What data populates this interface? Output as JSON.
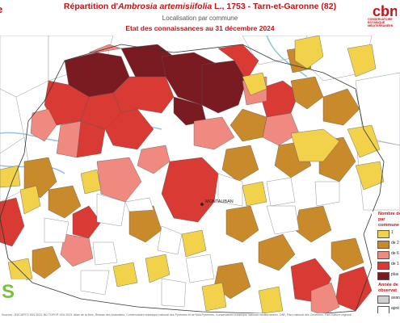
{
  "header": {
    "title_prefix": "Répartition d'",
    "title_species": "Ambrosia artemisiifolia",
    "title_suffix": " L., 1753 - Tarn-et-Garonne (82)",
    "subtitle": "Localisation par commune",
    "date_line": "Etat des connaissances au 31 décembre 2024",
    "left_logo_text": "e",
    "cbn_logo_text": "cbn",
    "cbn_caption": "CONSERVATOIRE BOTANIQUE MÉDITERRANÉEN"
  },
  "map": {
    "city_label": "MONTAUBAN",
    "colors": {
      "c1": "#f1d24a",
      "c2": "#c98a2c",
      "c3": "#f08a80",
      "c4": "#d93a33",
      "c5": "#7a1b22",
      "absent": "#ffffff",
      "water": "#8fc2e6"
    }
  },
  "legend": {
    "title": "Nombre de par commune",
    "items": [
      {
        "label": "1",
        "color": "#f1d24a"
      },
      {
        "label": "de 2",
        "color": "#c98a2c"
      },
      {
        "label": "de 6",
        "color": "#f08a80"
      },
      {
        "label": "de 1",
        "color": "#d93a33"
      },
      {
        "label": "plus",
        "color": "#7a1b22"
      }
    ],
    "year_title": "Année de observat",
    "year_items": [
      {
        "label": "avan",
        "color": "#cfcfcf"
      },
      {
        "label": "aprè",
        "color": "#ffffff"
      }
    ]
  },
  "credits": "Sources : BDCARTO IGN 2023, BD TOPO® IGN 2023, Atlas de la flore, Réseau des botanistes, Conservatoire botanique national des Pyrénées et de Midi-Pyrénées, Conservatoire botanique national méditerranéen, ONF, Parc national des Cévennes, Parc naturel régional",
  "region_logo": "S"
}
